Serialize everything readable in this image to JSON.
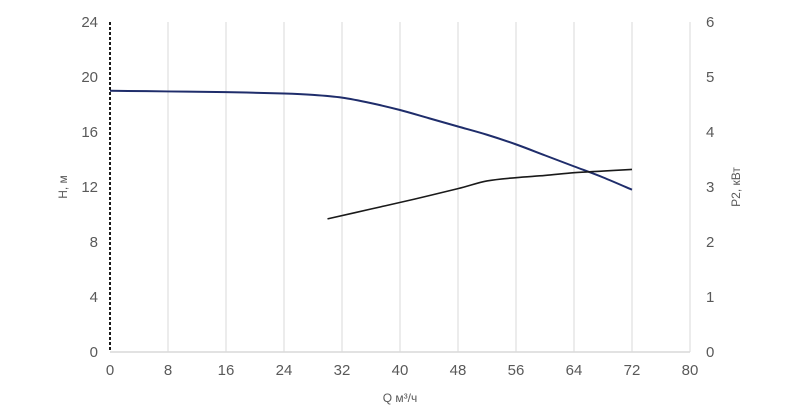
{
  "chart_data": {
    "type": "line",
    "x_ticks": [
      "0",
      "8",
      "16",
      "24",
      "32",
      "40",
      "48",
      "56",
      "64",
      "72",
      "80"
    ],
    "y_left_ticks": [
      "0",
      "4",
      "8",
      "12",
      "16",
      "20",
      "24"
    ],
    "y_right_ticks": [
      "0",
      "1",
      "2",
      "3",
      "4",
      "5",
      "6"
    ],
    "xlabel": "Q м³/ч",
    "ylabel_left": "H, м",
    "ylabel_right": "P2, кВт",
    "xlim": [
      0,
      80
    ],
    "ylim_left": [
      0,
      24
    ],
    "ylim_right": [
      0,
      6
    ],
    "grid": "vertical",
    "series": [
      {
        "axis": "left",
        "color": "#1f2d6b",
        "x": [
          0,
          8,
          16,
          24,
          28,
          32,
          36,
          40,
          44,
          48,
          52,
          56,
          60,
          64,
          68,
          72
        ],
        "y": [
          19.0,
          18.95,
          18.9,
          18.8,
          18.7,
          18.5,
          18.1,
          17.6,
          17.0,
          16.4,
          15.8,
          15.1,
          14.3,
          13.5,
          12.7,
          11.8
        ]
      },
      {
        "axis": "right",
        "color": "#1a1a1a",
        "x": [
          30,
          36,
          42,
          48,
          52,
          56,
          60,
          64,
          68,
          72
        ],
        "y": [
          2.42,
          2.6,
          2.78,
          2.97,
          3.11,
          3.17,
          3.21,
          3.26,
          3.29,
          3.32
        ]
      }
    ]
  }
}
